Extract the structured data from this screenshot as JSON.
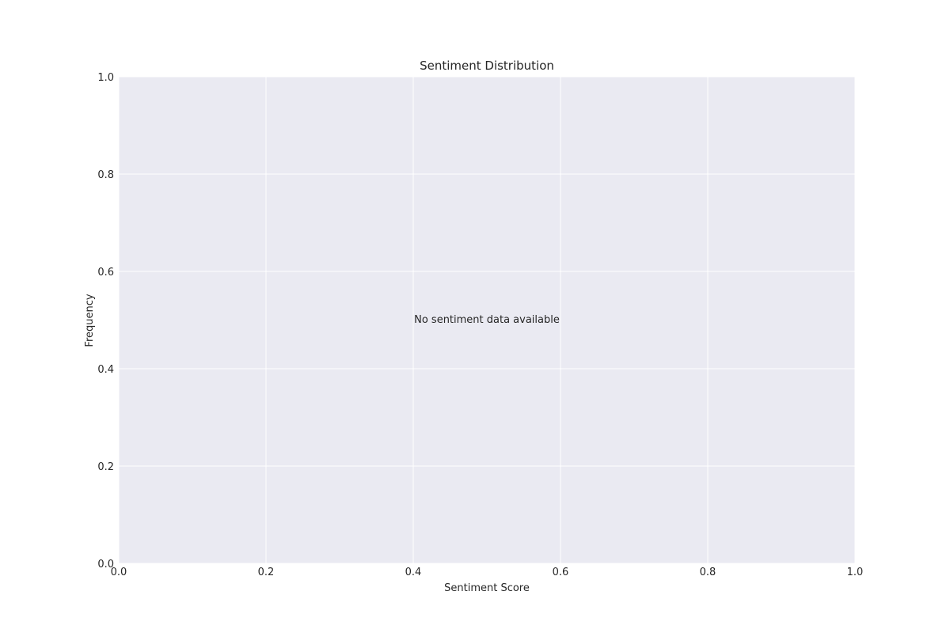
{
  "chart_data": {
    "type": "bar",
    "title": "Sentiment Distribution",
    "xlabel": "Sentiment Score",
    "ylabel": "Frequency",
    "xlim": [
      0.0,
      1.0
    ],
    "ylim": [
      0.0,
      1.0
    ],
    "x_ticks": [
      "0.0",
      "0.2",
      "0.4",
      "0.6",
      "0.8",
      "1.0"
    ],
    "y_ticks": [
      "0.0",
      "0.2",
      "0.4",
      "0.6",
      "0.8",
      "1.0"
    ],
    "values": [],
    "grid": true,
    "annotation": "No sentiment data available"
  },
  "colors": {
    "plot_background": "#eaeaf2",
    "grid": "#ffffff",
    "text": "#262626"
  }
}
